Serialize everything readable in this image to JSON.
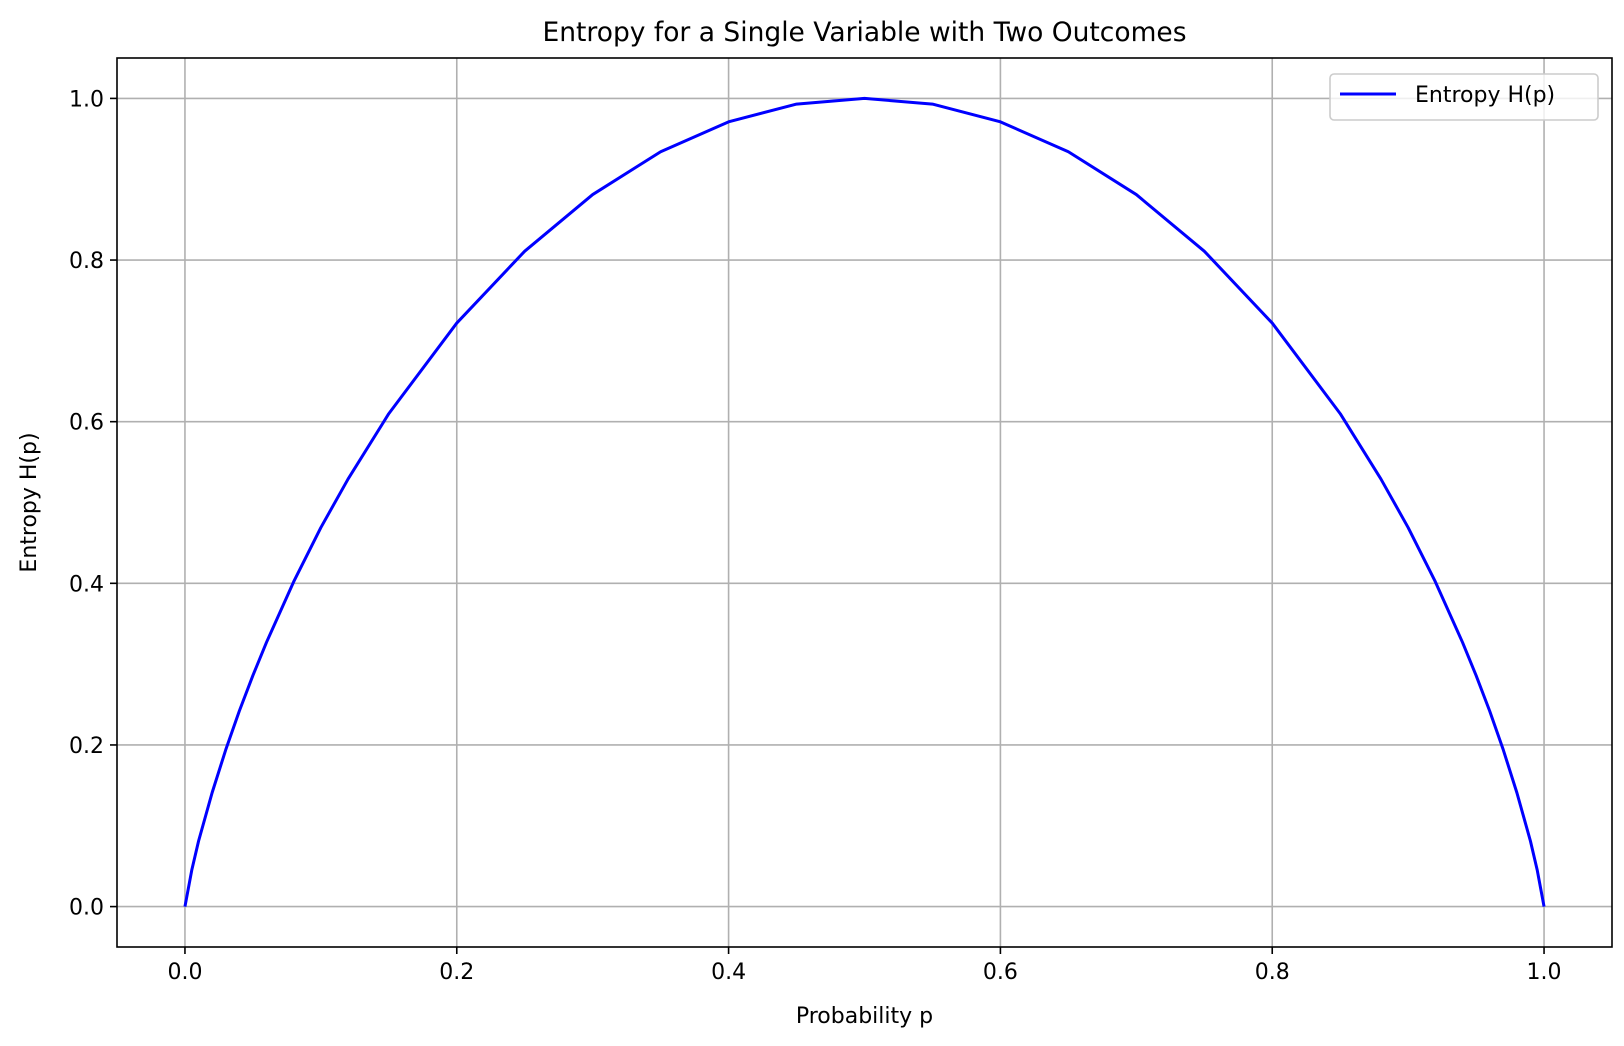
{
  "chart_data": {
    "type": "line",
    "title": "Entropy for a Single Variable with Two Outcomes",
    "xlabel": "Probability p",
    "ylabel": "Entropy H(p)",
    "xlim": [
      -0.05,
      1.05
    ],
    "ylim": [
      -0.05,
      1.05
    ],
    "xticks": [
      0.0,
      0.2,
      0.4,
      0.6,
      0.8,
      1.0
    ],
    "xtick_labels": [
      "0.0",
      "0.2",
      "0.4",
      "0.6",
      "0.8",
      "1.0"
    ],
    "yticks": [
      0.0,
      0.2,
      0.4,
      0.6,
      0.8,
      1.0
    ],
    "ytick_labels": [
      "0.0",
      "0.2",
      "0.4",
      "0.6",
      "0.8",
      "1.0"
    ],
    "grid": true,
    "legend_position": "top-right",
    "series": [
      {
        "name": "Entropy H(p)",
        "color": "#0000ff",
        "x": [
          0.0,
          0.005,
          0.01,
          0.02,
          0.03,
          0.04,
          0.05,
          0.06,
          0.08,
          0.1,
          0.12,
          0.15,
          0.2,
          0.25,
          0.3,
          0.35,
          0.4,
          0.45,
          0.5,
          0.55,
          0.6,
          0.65,
          0.7,
          0.75,
          0.8,
          0.85,
          0.88,
          0.9,
          0.92,
          0.94,
          0.95,
          0.96,
          0.97,
          0.98,
          0.99,
          0.995,
          1.0
        ],
        "y": [
          0.0,
          0.045,
          0.081,
          0.141,
          0.194,
          0.242,
          0.286,
          0.327,
          0.402,
          0.469,
          0.529,
          0.61,
          0.722,
          0.811,
          0.881,
          0.934,
          0.971,
          0.993,
          1.0,
          0.993,
          0.971,
          0.934,
          0.881,
          0.811,
          0.722,
          0.61,
          0.529,
          0.469,
          0.402,
          0.327,
          0.286,
          0.242,
          0.194,
          0.141,
          0.081,
          0.045,
          0.0
        ]
      }
    ]
  }
}
